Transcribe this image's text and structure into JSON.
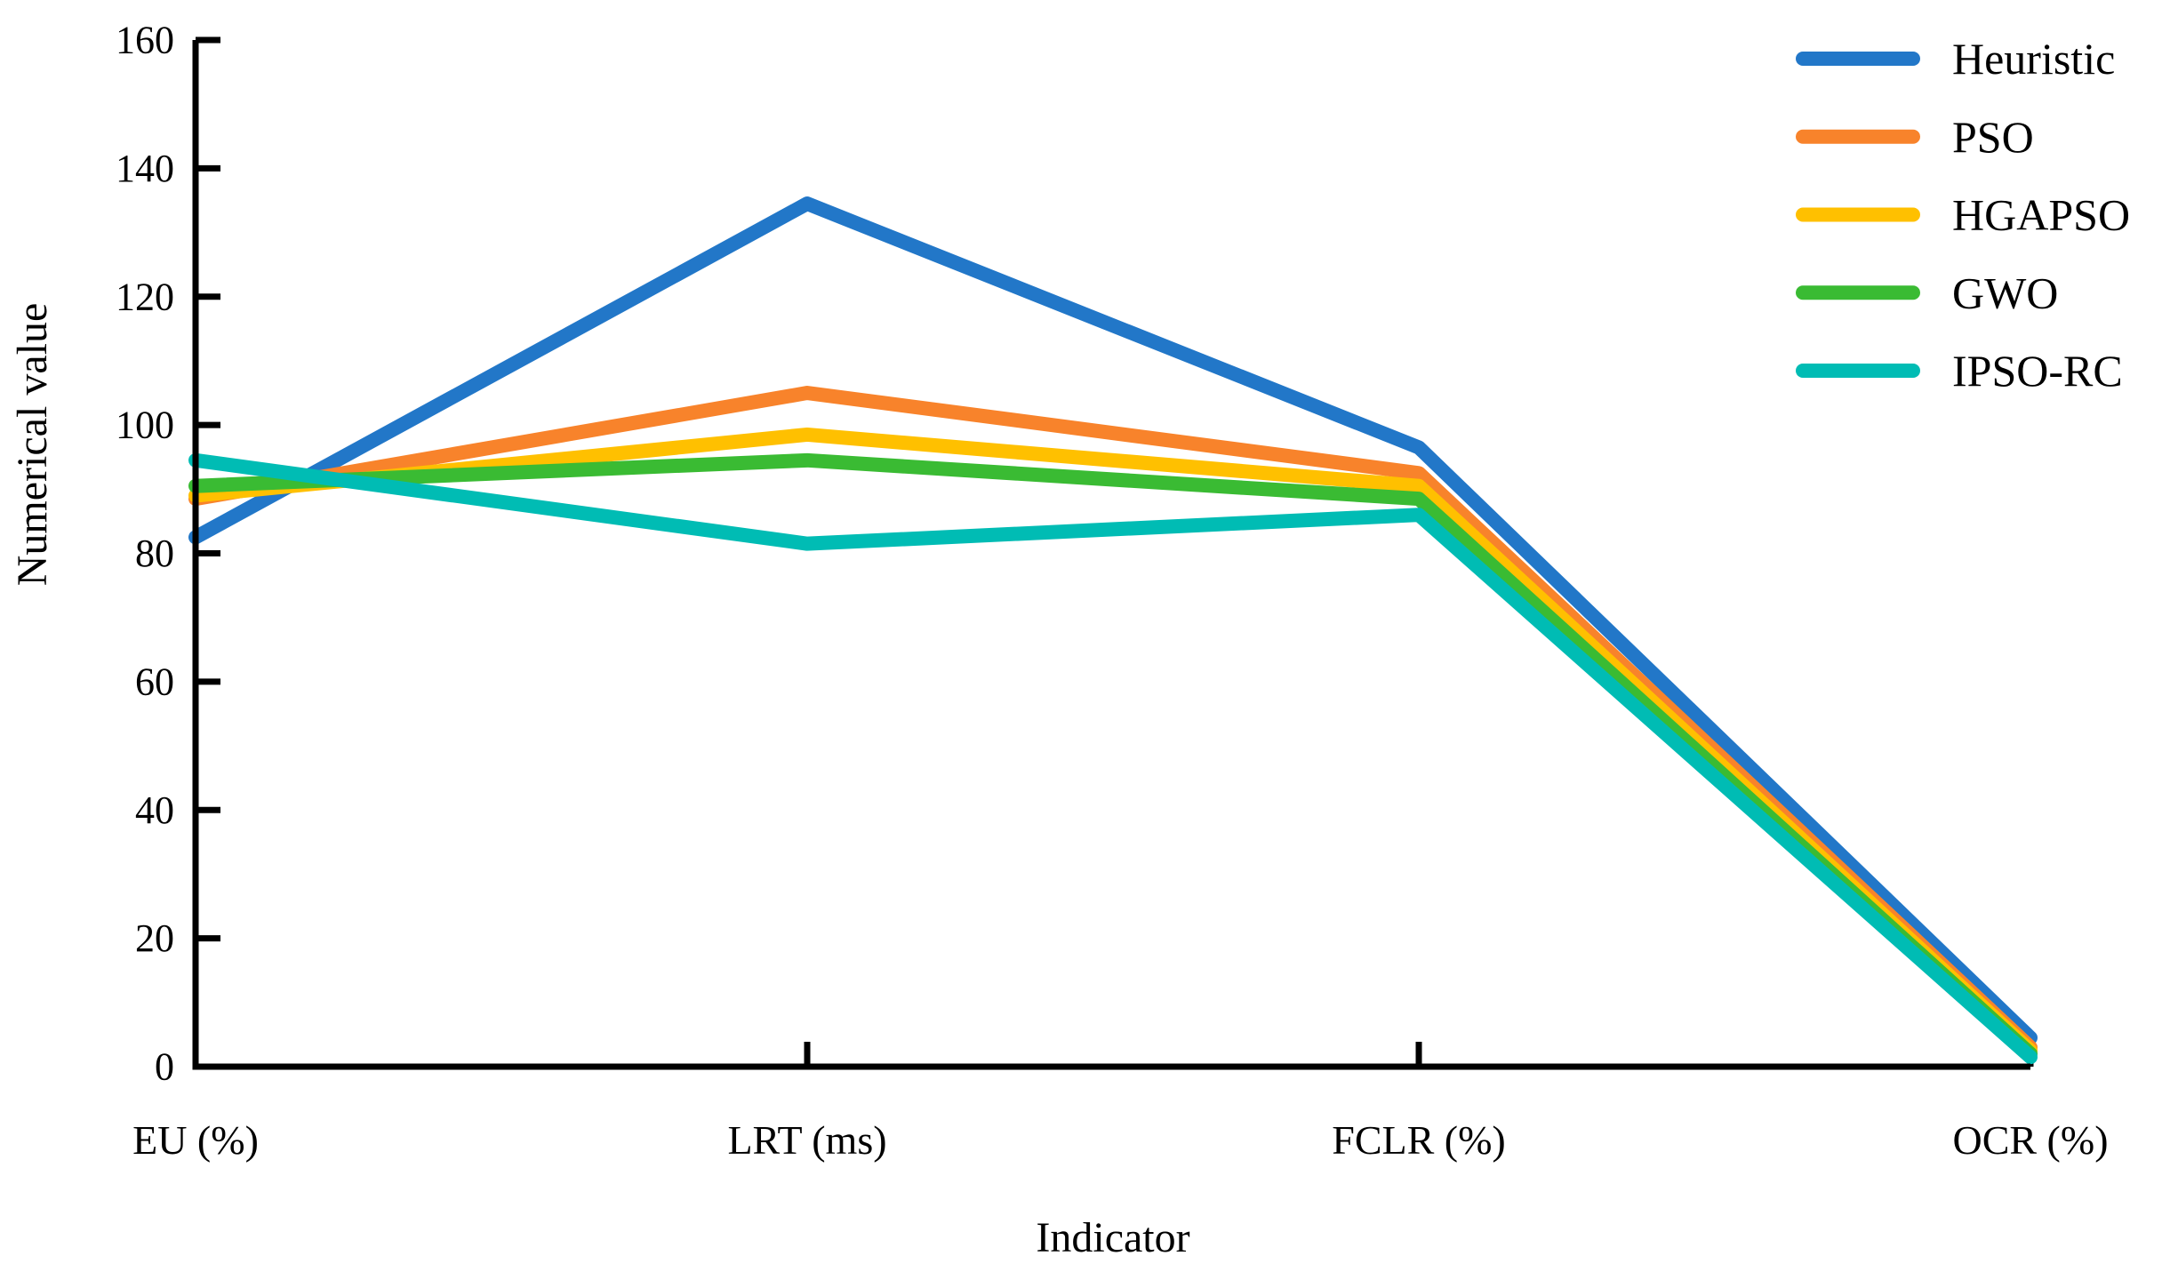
{
  "chart_data": {
    "type": "line",
    "title": "",
    "xlabel": "Indicator",
    "ylabel": "Numerical value",
    "categories": [
      "EU (%)",
      "LRT (ms)",
      "FCLR (%)",
      "OCR (%)"
    ],
    "series": [
      {
        "name": "Heuristic",
        "color": "#2277C8",
        "values": [
          82.5,
          134.5,
          96.5,
          4.5
        ]
      },
      {
        "name": "PSO",
        "color": "#F8832B",
        "values": [
          88.5,
          105.0,
          92.5,
          3.0
        ]
      },
      {
        "name": "HGAPSO",
        "color": "#FFC000",
        "values": [
          89.0,
          98.5,
          90.5,
          2.5
        ]
      },
      {
        "name": "GWO",
        "color": "#3ABB33",
        "values": [
          90.5,
          94.5,
          88.5,
          2.0
        ]
      },
      {
        "name": "IPSO-RC",
        "color": "#00BCB4",
        "values": [
          94.5,
          81.5,
          86.0,
          1.5
        ]
      }
    ],
    "ylim": [
      0,
      160
    ],
    "y_ticks": [
      0,
      20,
      40,
      60,
      80,
      100,
      120,
      140,
      160
    ],
    "grid": "off",
    "legend_position": "top-right",
    "axis_color": "#000000",
    "background_color": "#FFFFFF"
  }
}
